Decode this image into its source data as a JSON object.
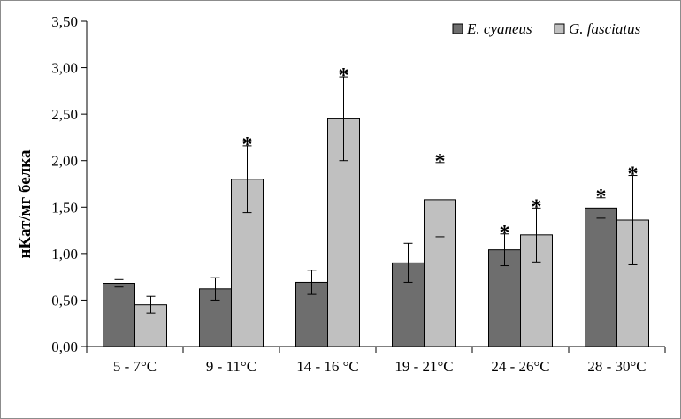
{
  "chart_data": {
    "type": "bar",
    "ylabel": "нКат/мг белка",
    "xlabel": "",
    "ylim": [
      0,
      3.5
    ],
    "yticks": [
      "0,00",
      "0,50",
      "1,00",
      "1,50",
      "2,00",
      "2,50",
      "3,00",
      "3,50"
    ],
    "categories": [
      "5 - 7°C",
      "9 - 11°C",
      "14 - 16 °C",
      "19 - 21°C",
      "24 - 26°C",
      "28 - 30°C"
    ],
    "series": [
      {
        "name": "E. cyaneus",
        "color": "#6e6e6e",
        "values": [
          0.68,
          0.62,
          0.69,
          0.9,
          1.04,
          1.49
        ],
        "errors": [
          0.04,
          0.12,
          0.13,
          0.21,
          0.17,
          0.11
        ],
        "significant": [
          false,
          false,
          false,
          false,
          true,
          true
        ]
      },
      {
        "name": "G. fasciatus",
        "color": "#c0c0c0",
        "values": [
          0.45,
          1.8,
          2.45,
          1.58,
          1.2,
          1.36
        ],
        "errors": [
          0.09,
          0.36,
          0.45,
          0.4,
          0.29,
          0.48
        ],
        "significant": [
          false,
          true,
          true,
          true,
          true,
          true
        ]
      }
    ],
    "significance_marker": "*",
    "legend_position": "top-right",
    "grid": false
  }
}
